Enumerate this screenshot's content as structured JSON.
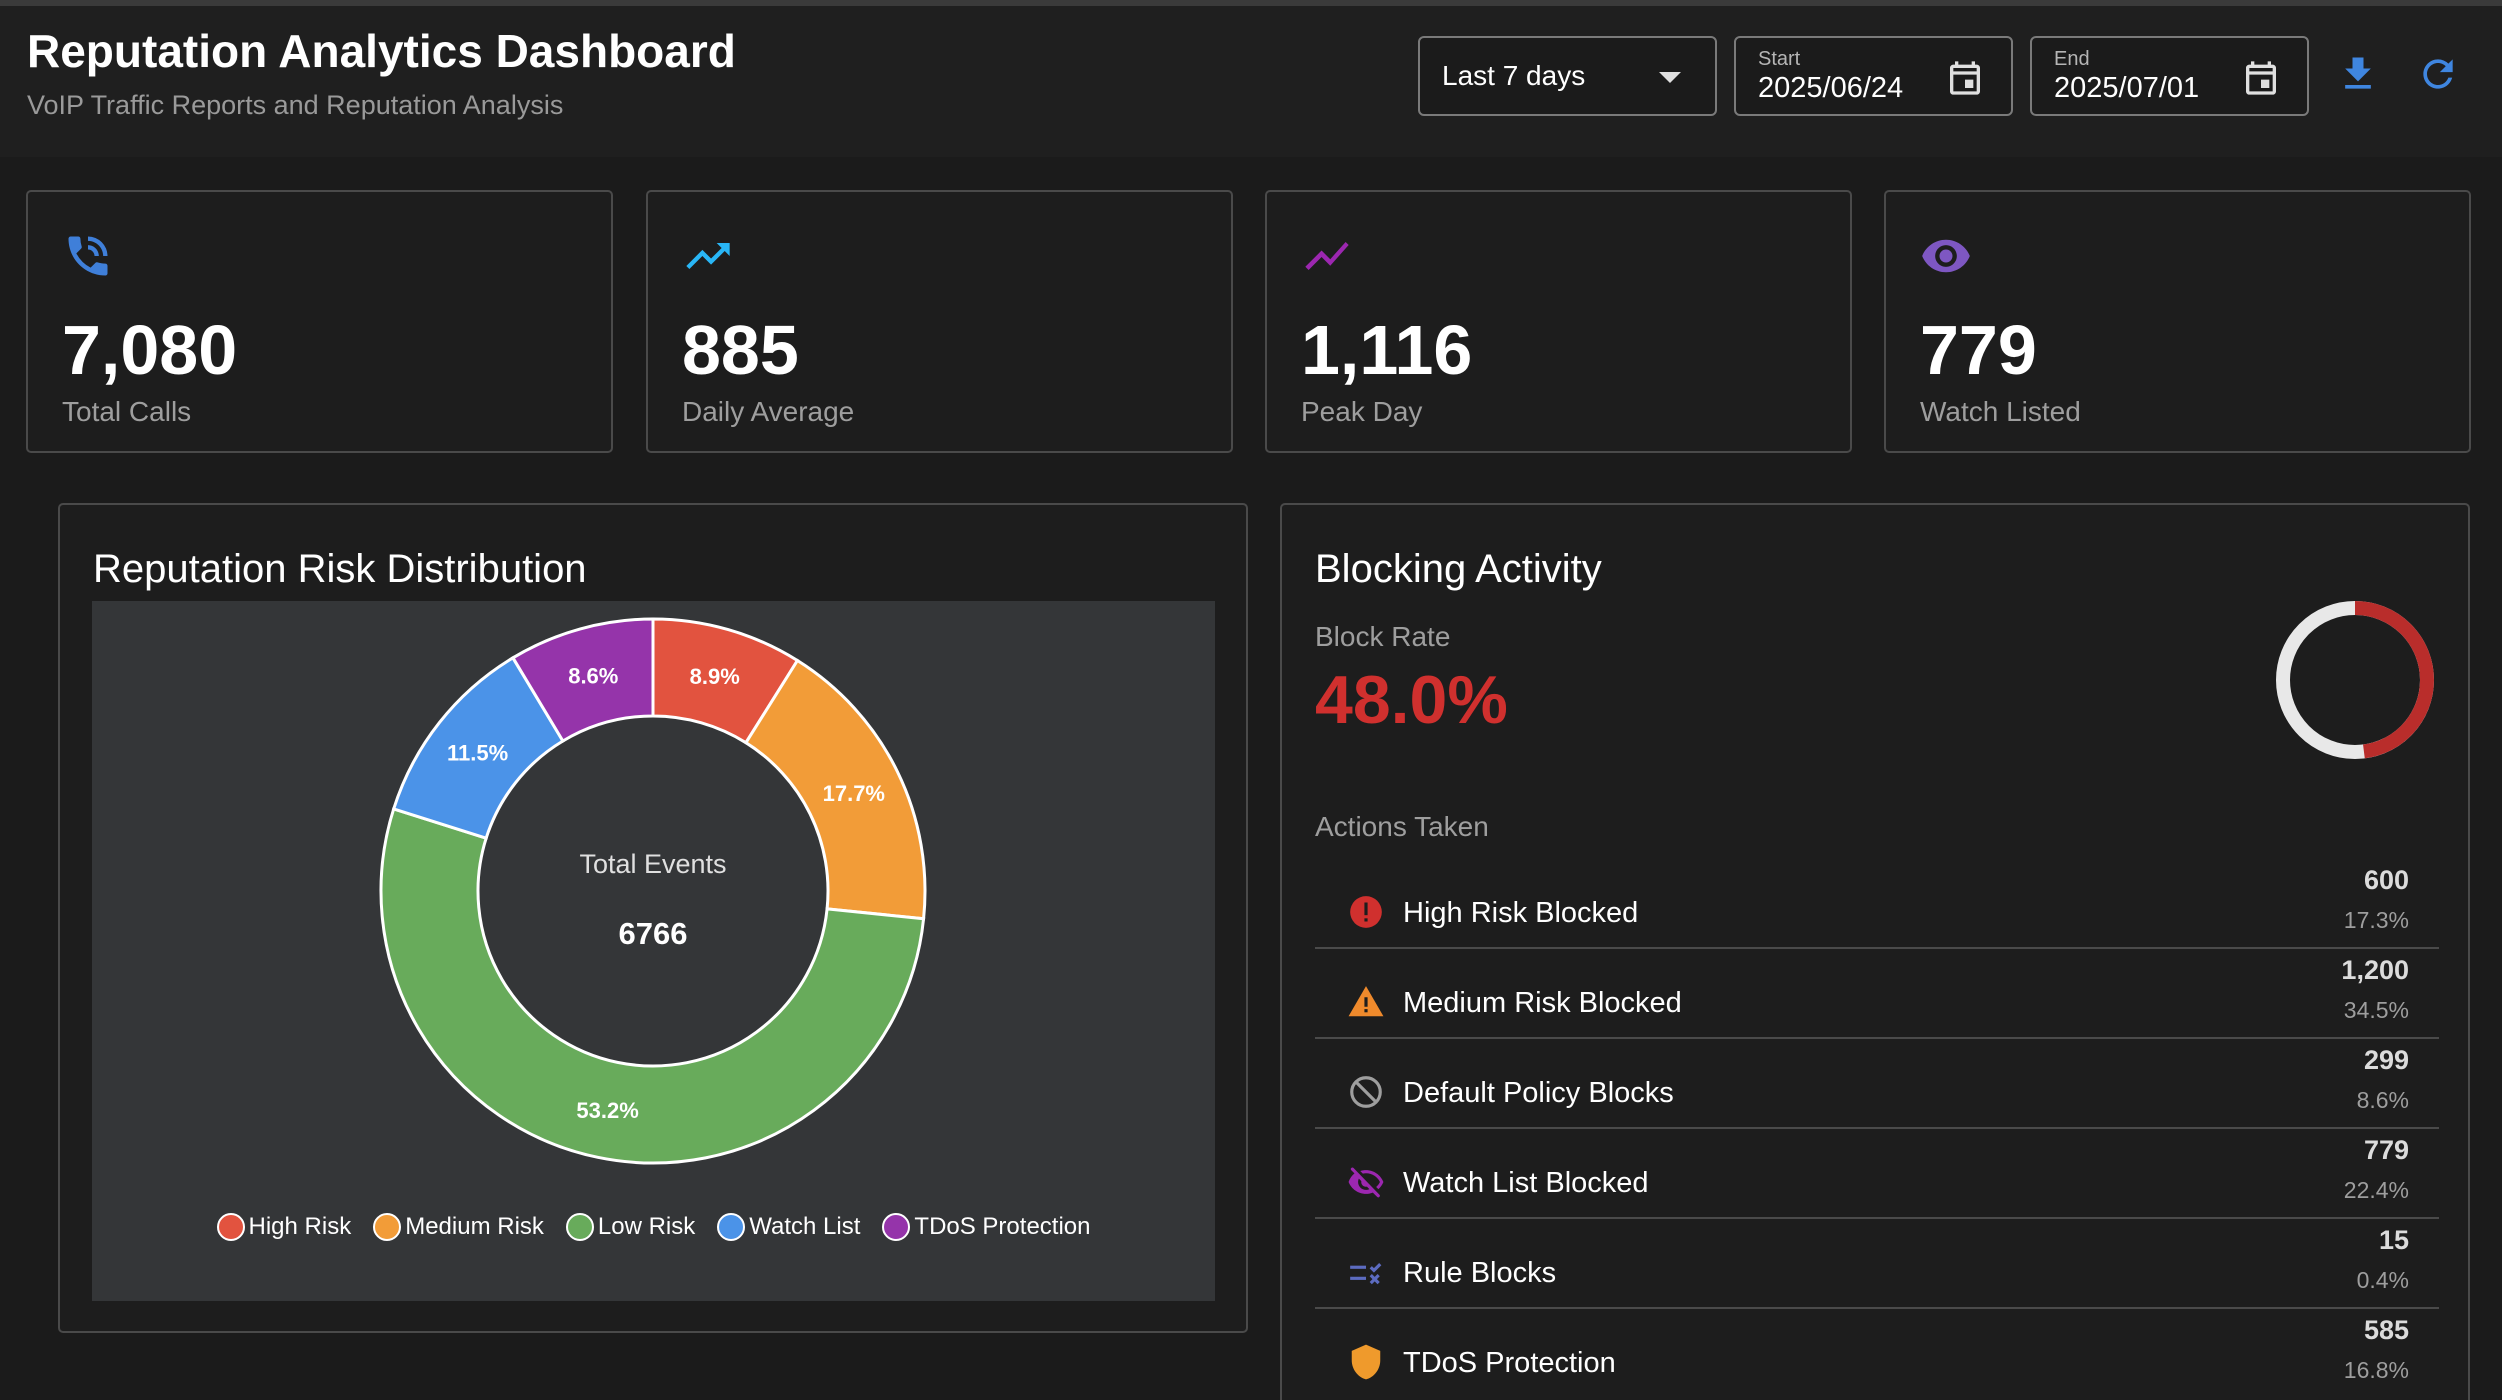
{
  "header": {
    "title": "Reputation Analytics Dashboard",
    "subtitle": "VoIP Traffic Reports and Reputation Analysis",
    "range_select": "Last 7 days",
    "start_label": "Start",
    "start_value": "2025/06/24",
    "end_label": "End",
    "end_value": "2025/07/01"
  },
  "stats": [
    {
      "value": "7,080",
      "label": "Total Calls",
      "icon": "phone-call-icon",
      "color": "#3f7fd9"
    },
    {
      "value": "885",
      "label": "Daily Average",
      "icon": "trending-up-icon",
      "color": "#29b6f6"
    },
    {
      "value": "1,116",
      "label": "Peak Day",
      "icon": "chart-line-icon",
      "color": "#9c27b0"
    },
    {
      "value": "779",
      "label": "Watch Listed",
      "icon": "eye-icon",
      "color": "#7e57c2"
    }
  ],
  "risk_panel": {
    "title": "Reputation Risk Distribution"
  },
  "chart_data": {
    "type": "pie",
    "title": "Reputation Risk Distribution",
    "center_label": "Total Events",
    "center_value": "6766",
    "categories": [
      "High Risk",
      "Medium Risk",
      "Low Risk",
      "Watch List",
      "TDoS Protection"
    ],
    "values": [
      8.9,
      17.7,
      53.2,
      11.5,
      8.6
    ],
    "value_labels": [
      "8.9%",
      "17.7%",
      "53.2%",
      "11.5%",
      "8.6%"
    ],
    "colors": [
      "#e2533f",
      "#f29c38",
      "#68ab5b",
      "#4b93e8",
      "#9534aa"
    ],
    "legend_position": "bottom"
  },
  "blocking_panel": {
    "title": "Blocking Activity",
    "block_rate_label": "Block Rate",
    "block_rate_value": "48.0%",
    "block_rate_fraction": 0.48,
    "ring_color": "#b92d2b",
    "ring_track_color": "#e8e8e8",
    "actions_label": "Actions Taken",
    "actions": [
      {
        "label": "High Risk Blocked",
        "count": "600",
        "pct": "17.3%",
        "icon": "error-icon",
        "color": "#d0302e"
      },
      {
        "label": "Medium Risk Blocked",
        "count": "1,200",
        "pct": "34.5%",
        "icon": "warning-icon",
        "color": "#ef8a2c"
      },
      {
        "label": "Default Policy Blocks",
        "count": "299",
        "pct": "8.6%",
        "icon": "block-icon",
        "color": "#9e9e9e"
      },
      {
        "label": "Watch List Blocked",
        "count": "779",
        "pct": "22.4%",
        "icon": "eye-off-icon",
        "color": "#9c27b0"
      },
      {
        "label": "Rule Blocks",
        "count": "15",
        "pct": "0.4%",
        "icon": "rule-icon",
        "color": "#5c6bc0"
      },
      {
        "label": "TDoS Protection",
        "count": "585",
        "pct": "16.8%",
        "icon": "shield-icon",
        "color": "#ef9a2c"
      }
    ]
  }
}
